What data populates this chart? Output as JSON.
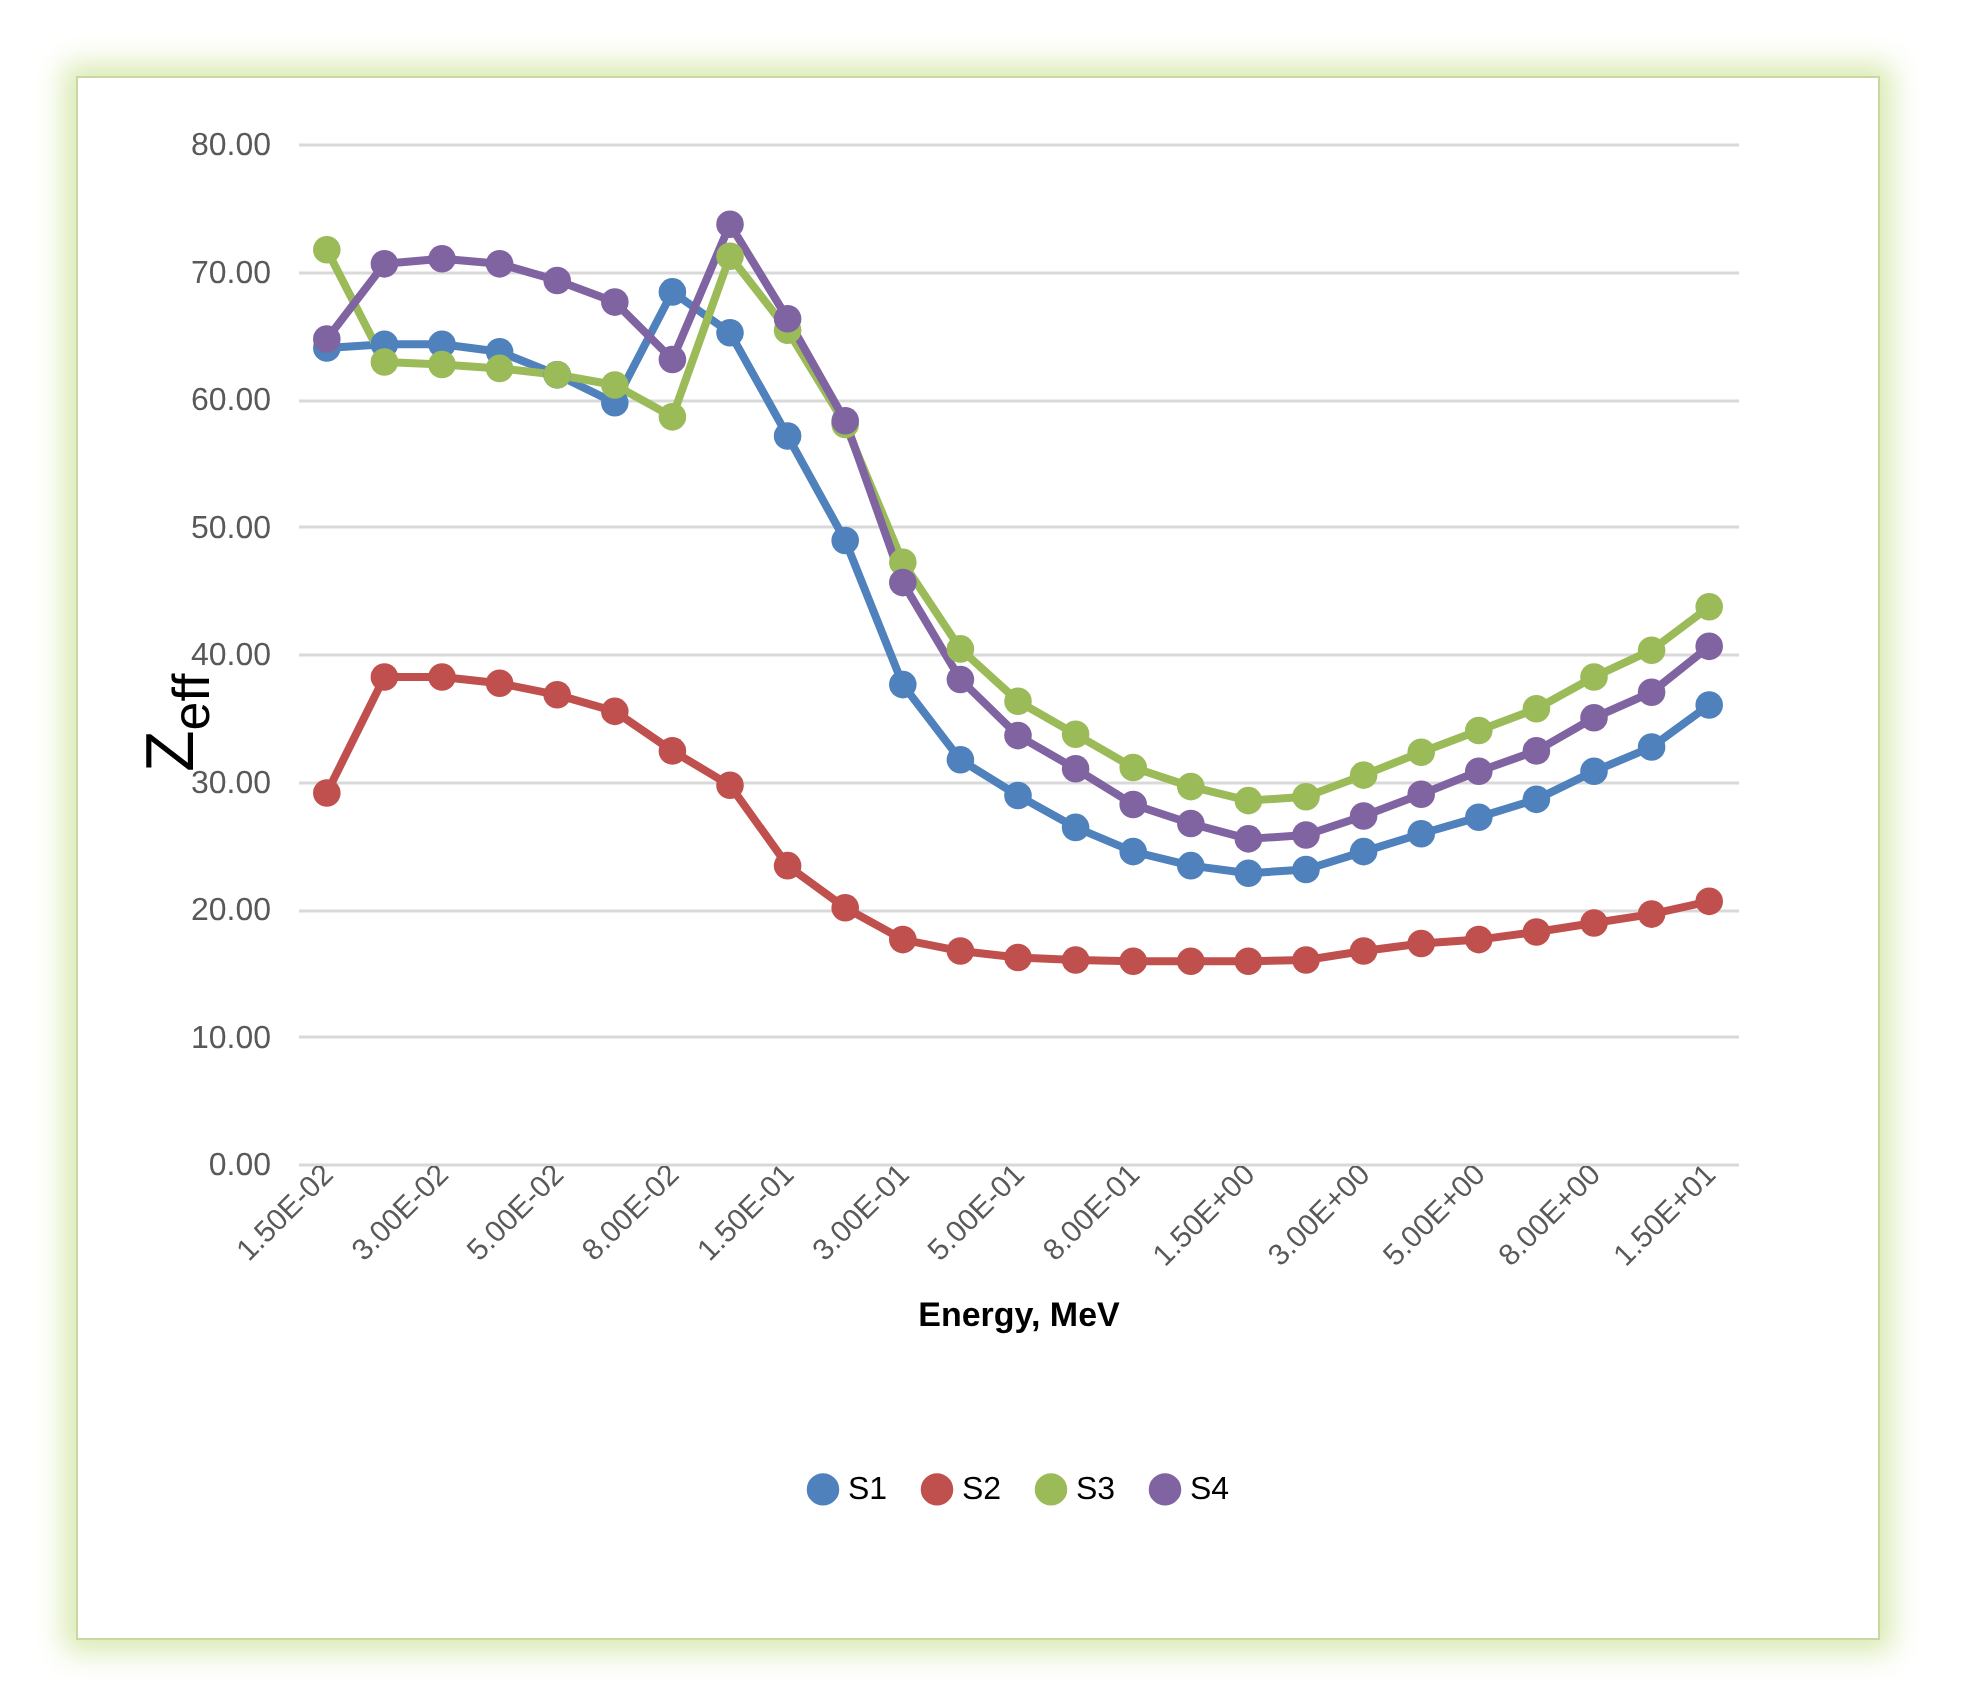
{
  "chart_data": {
    "type": "line",
    "xlabel": "Energy, MeV",
    "ylabel": "Z$_{eff}$",
    "categories": [
      "1.50E-02",
      null,
      "3.00E-02",
      null,
      "5.00E-02",
      null,
      "8.00E-02",
      null,
      "1.50E-01",
      null,
      "3.00E-01",
      null,
      "5.00E-01",
      null,
      "8.00E-01",
      null,
      "1.50E+00",
      null,
      "3.00E+00",
      null,
      "5.00E+00",
      null,
      "8.00E+00",
      null,
      "1.50E+01"
    ],
    "series": [
      {
        "name": "S1",
        "color": "#4f81bd",
        "values": [
          64.0,
          64.3,
          64.3,
          63.7,
          61.9,
          59.7,
          68.4,
          65.2,
          57.1,
          48.9,
          37.6,
          31.7,
          28.9,
          26.4,
          24.5,
          23.4,
          22.8,
          23.1,
          24.5,
          25.9,
          27.2,
          28.6,
          30.8,
          32.7,
          36.0
        ]
      },
      {
        "name": "S2",
        "color": "#c0504d",
        "values": [
          29.1,
          38.2,
          38.2,
          37.7,
          36.8,
          35.5,
          32.4,
          29.7,
          23.4,
          20.1,
          17.6,
          16.7,
          16.2,
          16.0,
          15.9,
          15.9,
          15.9,
          16.0,
          16.7,
          17.3,
          17.6,
          18.2,
          18.9,
          19.6,
          20.6
        ]
      },
      {
        "name": "S3",
        "color": "#9bbb59",
        "values": [
          71.7,
          62.9,
          62.7,
          62.4,
          61.9,
          61.1,
          58.6,
          71.2,
          65.4,
          58.0,
          47.2,
          40.4,
          36.3,
          33.7,
          31.1,
          29.6,
          28.5,
          28.8,
          30.5,
          32.3,
          34.0,
          35.7,
          38.2,
          40.3,
          43.7
        ]
      },
      {
        "name": "S4",
        "color": "#8064a2",
        "values": [
          64.7,
          70.6,
          71.0,
          70.6,
          69.3,
          67.6,
          63.1,
          73.7,
          66.3,
          58.3,
          45.6,
          38.0,
          33.6,
          31.0,
          28.2,
          26.7,
          25.5,
          25.8,
          27.3,
          29.0,
          30.8,
          32.4,
          35.0,
          37.0,
          40.6
        ]
      }
    ],
    "ylim": [
      0,
      80
    ],
    "yticks": [
      {
        "value": 0,
        "label": "0.00"
      },
      {
        "value": 10,
        "label": "10.00"
      },
      {
        "value": 20,
        "label": "20.00"
      },
      {
        "value": 30,
        "label": "30.00"
      },
      {
        "value": 40,
        "label": "40.00"
      },
      {
        "value": 50,
        "label": "50.00"
      },
      {
        "value": 60,
        "label": "60.00"
      },
      {
        "value": 70,
        "label": "70.00"
      },
      {
        "value": 80,
        "label": "80.00"
      }
    ],
    "grid": "y",
    "legend": "bottom",
    "marker": "circle",
    "line_style": "solid"
  }
}
